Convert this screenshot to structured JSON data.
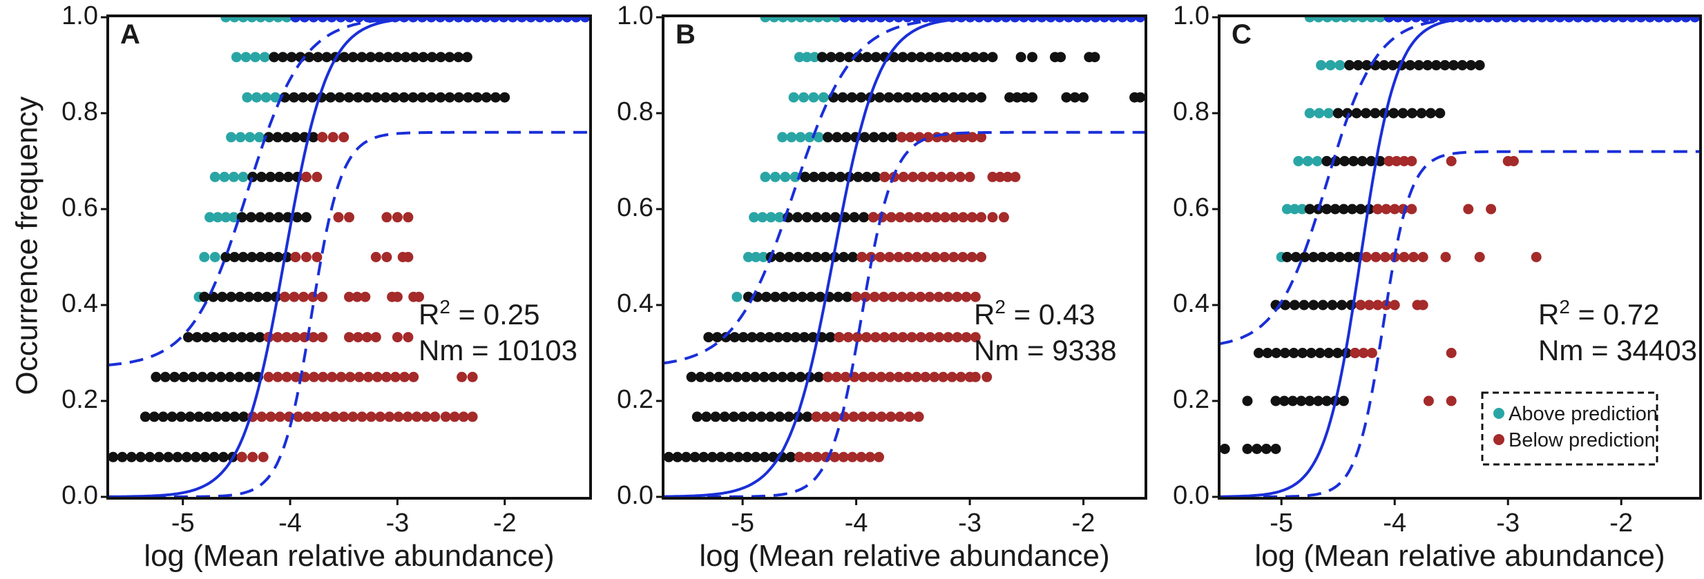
{
  "figure": {
    "ylabel": "Occurrence frequency",
    "y_ticks": [
      "0.0",
      "0.2",
      "0.4",
      "0.6",
      "0.8",
      "1.0"
    ],
    "y_tick_values": [
      0,
      0.2,
      0.4,
      0.6,
      0.8,
      1.0
    ],
    "x_ticks": [
      "-5",
      "-4",
      "-3",
      "-2"
    ],
    "x_tick_values": [
      -5,
      -4,
      -3,
      -2
    ],
    "colors": {
      "above": "#2aa5a5",
      "below": "#a52a2a",
      "neutral": "#111111",
      "fit": "#1a2fd8",
      "frame": "#111111"
    },
    "legend": {
      "above_label": "Above prediction",
      "below_label": "Below prediction",
      "placement": "bottom-right of panel C"
    }
  },
  "chart_data": [
    {
      "type": "scatter",
      "panel": "A",
      "xlabel": "log (Mean relative abundance)",
      "ylabel": "Occurrence frequency",
      "xlim": [
        -5.7,
        -1.2
      ],
      "ylim": [
        0,
        1
      ],
      "r2_text": "R",
      "r2_sup": "2",
      "r2_value_text": " = 0.25",
      "nm_text": "Nm = 10103",
      "fit": {
        "m": -4.05,
        "s": 0.2,
        "upper_m": -4.4,
        "upper_s": 0.26,
        "lower_m": -3.8,
        "lower_s": 0.14,
        "lower_max": 0.76,
        "floor": 0.27
      },
      "rows": [
        {
          "y": 1.0,
          "segments": [
            [
              -4.6,
              -3.95,
              "above"
            ],
            [
              -3.95,
              -1.25,
              "fit"
            ]
          ]
        },
        {
          "y": 0.917,
          "segments": [
            [
              -4.5,
              -4.15,
              "above"
            ],
            [
              -4.15,
              -2.35,
              "neutral"
            ]
          ]
        },
        {
          "y": 0.833,
          "segments": [
            [
              -4.4,
              -4.05,
              "above"
            ],
            [
              -4.05,
              -2.0,
              "neutral"
            ]
          ]
        },
        {
          "y": 0.75,
          "segments": [
            [
              -4.55,
              -4.2,
              "above"
            ],
            [
              -4.2,
              -3.7,
              "neutral"
            ],
            [
              -3.7,
              -3.5,
              "below"
            ]
          ]
        },
        {
          "y": 0.667,
          "segments": [
            [
              -4.7,
              -4.35,
              "above"
            ],
            [
              -4.35,
              -3.85,
              "neutral"
            ],
            [
              -3.85,
              -3.75,
              "below"
            ]
          ]
        },
        {
          "y": 0.583,
          "segments": [
            [
              -4.75,
              -4.45,
              "above"
            ],
            [
              -4.45,
              -3.85,
              "neutral"
            ],
            [
              -3.55,
              -3.45,
              "below"
            ],
            [
              -3.1,
              -2.9,
              "below"
            ]
          ]
        },
        {
          "y": 0.5,
          "segments": [
            [
              -4.8,
              -4.6,
              "above"
            ],
            [
              -4.6,
              -3.95,
              "neutral"
            ],
            [
              -3.95,
              -3.75,
              "below"
            ],
            [
              -3.2,
              -3.1,
              "below"
            ],
            [
              -2.95,
              -2.9,
              "below"
            ]
          ]
        },
        {
          "y": 0.417,
          "segments": [
            [
              -4.85,
              -4.8,
              "above"
            ],
            [
              -4.8,
              -4.05,
              "neutral"
            ],
            [
              -4.05,
              -3.7,
              "below"
            ],
            [
              -3.45,
              -3.3,
              "below"
            ],
            [
              -3.05,
              -3.0,
              "below"
            ],
            [
              -2.85,
              -2.8,
              "below"
            ]
          ]
        },
        {
          "y": 0.333,
          "segments": [
            [
              -4.95,
              -4.2,
              "neutral"
            ],
            [
              -4.2,
              -3.7,
              "below"
            ],
            [
              -3.45,
              -3.2,
              "below"
            ],
            [
              -3.0,
              -2.9,
              "below"
            ]
          ]
        },
        {
          "y": 0.25,
          "segments": [
            [
              -5.25,
              -4.3,
              "neutral"
            ],
            [
              -4.2,
              -2.85,
              "below"
            ],
            [
              -2.4,
              -2.3,
              "below"
            ]
          ]
        },
        {
          "y": 0.167,
          "segments": [
            [
              -5.35,
              -4.35,
              "neutral"
            ],
            [
              -4.35,
              -2.65,
              "below"
            ],
            [
              -2.55,
              -2.3,
              "below"
            ]
          ]
        },
        {
          "y": 0.083,
          "segments": [
            [
              -5.65,
              -4.45,
              "neutral"
            ],
            [
              -4.45,
              -4.25,
              "below"
            ]
          ]
        }
      ]
    },
    {
      "type": "scatter",
      "panel": "B",
      "xlabel": "log (Mean relative abundance)",
      "ylabel": "Occurrence frequency",
      "xlim": [
        -5.7,
        -1.45
      ],
      "ylim": [
        0,
        1
      ],
      "r2_text": "R",
      "r2_sup": "2",
      "r2_value_text": " = 0.43",
      "nm_text": "Nm = 9338",
      "fit": {
        "m": -4.2,
        "s": 0.2,
        "upper_m": -4.55,
        "upper_s": 0.26,
        "lower_m": -3.95,
        "lower_s": 0.14,
        "lower_max": 0.76,
        "floor": 0.27
      },
      "rows": [
        {
          "y": 1.0,
          "segments": [
            [
              -4.8,
              -4.1,
              "above"
            ],
            [
              -4.1,
              -1.5,
              "fit"
            ]
          ]
        },
        {
          "y": 0.917,
          "segments": [
            [
              -4.5,
              -4.3,
              "above"
            ],
            [
              -4.3,
              -2.8,
              "neutral"
            ],
            [
              -2.55,
              -2.45,
              "neutral"
            ],
            [
              -2.25,
              -2.2,
              "neutral"
            ],
            [
              -1.95,
              -1.9,
              "neutral"
            ]
          ]
        },
        {
          "y": 0.833,
          "segments": [
            [
              -4.55,
              -4.2,
              "above"
            ],
            [
              -4.2,
              -2.9,
              "neutral"
            ],
            [
              -2.65,
              -2.45,
              "neutral"
            ],
            [
              -2.15,
              -2.0,
              "neutral"
            ],
            [
              -1.55,
              -1.5,
              "neutral"
            ]
          ]
        },
        {
          "y": 0.75,
          "segments": [
            [
              -4.65,
              -4.25,
              "above"
            ],
            [
              -4.25,
              -3.6,
              "neutral"
            ],
            [
              -3.6,
              -2.9,
              "below"
            ]
          ]
        },
        {
          "y": 0.667,
          "segments": [
            [
              -4.8,
              -4.45,
              "above"
            ],
            [
              -4.45,
              -3.75,
              "neutral"
            ],
            [
              -3.75,
              -3.0,
              "below"
            ],
            [
              -2.8,
              -2.6,
              "below"
            ]
          ]
        },
        {
          "y": 0.583,
          "segments": [
            [
              -4.9,
              -4.6,
              "above"
            ],
            [
              -4.6,
              -3.85,
              "neutral"
            ],
            [
              -3.85,
              -2.9,
              "below"
            ],
            [
              -2.8,
              -2.7,
              "below"
            ]
          ]
        },
        {
          "y": 0.5,
          "segments": [
            [
              -4.95,
              -4.75,
              "above"
            ],
            [
              -4.75,
              -3.95,
              "neutral"
            ],
            [
              -3.95,
              -2.9,
              "below"
            ]
          ]
        },
        {
          "y": 0.417,
          "segments": [
            [
              -5.05,
              -4.95,
              "above"
            ],
            [
              -4.95,
              -4.0,
              "neutral"
            ],
            [
              -4.0,
              -2.95,
              "below"
            ]
          ]
        },
        {
          "y": 0.333,
          "segments": [
            [
              -5.3,
              -4.15,
              "neutral"
            ],
            [
              -4.15,
              -2.95,
              "below"
            ]
          ]
        },
        {
          "y": 0.25,
          "segments": [
            [
              -5.45,
              -4.25,
              "neutral"
            ],
            [
              -4.25,
              -3.0,
              "below"
            ],
            [
              -2.95,
              -2.85,
              "below"
            ]
          ]
        },
        {
          "y": 0.167,
          "segments": [
            [
              -5.4,
              -4.35,
              "neutral"
            ],
            [
              -4.35,
              -3.45,
              "below"
            ]
          ]
        },
        {
          "y": 0.083,
          "segments": [
            [
              -5.65,
              -4.5,
              "neutral"
            ],
            [
              -4.5,
              -3.8,
              "below"
            ]
          ]
        }
      ]
    },
    {
      "type": "scatter",
      "panel": "C",
      "xlabel": "log (Mean relative abundance)",
      "ylabel": "Occurrence frequency",
      "xlim": [
        -5.55,
        -1.3
      ],
      "ylim": [
        0,
        1
      ],
      "r2_text": "R",
      "r2_sup": "2",
      "r2_value_text": " = 0.72",
      "nm_text": "Nm = 34403",
      "fit": {
        "m": -4.3,
        "s": 0.16,
        "upper_m": -4.6,
        "upper_s": 0.22,
        "lower_m": -4.1,
        "lower_s": 0.12,
        "lower_max": 0.72,
        "floor": 0.31
      },
      "rows": [
        {
          "y": 1.0,
          "segments": [
            [
              -4.75,
              -4.05,
              "above"
            ],
            [
              -4.05,
              -1.35,
              "fit"
            ]
          ]
        },
        {
          "y": 0.9,
          "segments": [
            [
              -4.65,
              -4.4,
              "above"
            ],
            [
              -4.4,
              -3.25,
              "neutral"
            ]
          ]
        },
        {
          "y": 0.8,
          "segments": [
            [
              -4.75,
              -4.5,
              "above"
            ],
            [
              -4.5,
              -3.6,
              "neutral"
            ]
          ]
        },
        {
          "y": 0.7,
          "segments": [
            [
              -4.85,
              -4.6,
              "above"
            ],
            [
              -4.6,
              -4.05,
              "neutral"
            ],
            [
              -4.05,
              -3.85,
              "below"
            ],
            [
              -3.5,
              -3.5,
              "below"
            ],
            [
              -3.0,
              -2.95,
              "below"
            ]
          ]
        },
        {
          "y": 0.6,
          "segments": [
            [
              -4.95,
              -4.75,
              "above"
            ],
            [
              -4.75,
              -4.15,
              "neutral"
            ],
            [
              -4.15,
              -3.85,
              "below"
            ],
            [
              -3.35,
              -3.35,
              "below"
            ],
            [
              -3.15,
              -3.15,
              "below"
            ]
          ]
        },
        {
          "y": 0.5,
          "segments": [
            [
              -5.0,
              -4.95,
              "above"
            ],
            [
              -4.95,
              -4.25,
              "neutral"
            ],
            [
              -4.25,
              -3.75,
              "below"
            ],
            [
              -3.55,
              -3.55,
              "below"
            ],
            [
              -3.25,
              -3.25,
              "below"
            ],
            [
              -2.75,
              -2.75,
              "below"
            ]
          ]
        },
        {
          "y": 0.4,
          "segments": [
            [
              -5.05,
              -4.3,
              "neutral"
            ],
            [
              -4.3,
              -4.0,
              "below"
            ],
            [
              -3.8,
              -3.75,
              "below"
            ]
          ]
        },
        {
          "y": 0.3,
          "segments": [
            [
              -5.2,
              -4.35,
              "neutral"
            ],
            [
              -4.35,
              -4.2,
              "below"
            ],
            [
              -3.5,
              -3.5,
              "below"
            ]
          ]
        },
        {
          "y": 0.2,
          "segments": [
            [
              -5.3,
              -5.3,
              "neutral"
            ],
            [
              -5.05,
              -4.45,
              "neutral"
            ],
            [
              -3.7,
              -3.7,
              "below"
            ],
            [
              -3.5,
              -3.5,
              "below"
            ]
          ]
        },
        {
          "y": 0.1,
          "segments": [
            [
              -5.5,
              -5.5,
              "neutral"
            ],
            [
              -5.3,
              -5.05,
              "neutral"
            ]
          ]
        }
      ]
    }
  ]
}
